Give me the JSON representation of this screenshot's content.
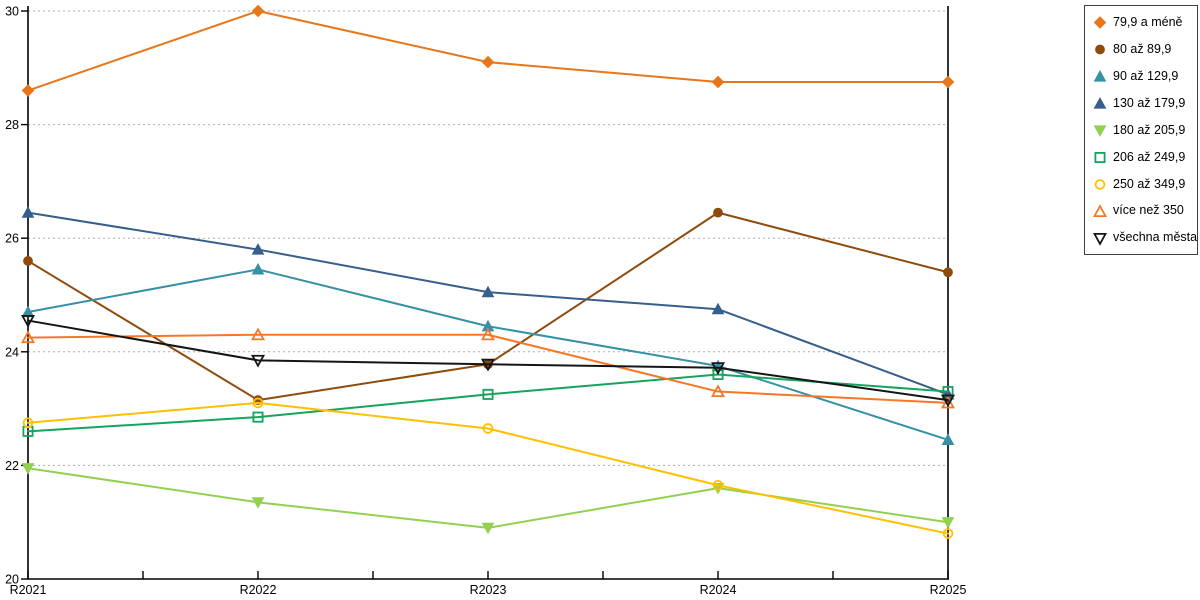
{
  "chart_data": {
    "type": "line",
    "x": [
      "R2021",
      "R2022",
      "R2023",
      "R2024",
      "R2025"
    ],
    "ylim": [
      20,
      30
    ],
    "yticks": [
      20,
      22,
      24,
      26,
      28,
      30
    ],
    "grid": "dashed-horizontal",
    "legend_position": "outside-top-right",
    "title": "",
    "xlabel": "",
    "ylabel": "",
    "series": [
      {
        "name": "79,9 a méně",
        "color": "#e8761a",
        "marker": "diamond",
        "filled": true,
        "values": [
          28.6,
          30.0,
          29.1,
          28.75,
          28.75
        ]
      },
      {
        "name": "80 až 89,9",
        "color": "#8f4b0e",
        "marker": "circle",
        "filled": true,
        "values": [
          25.6,
          23.15,
          23.78,
          26.45,
          25.4
        ]
      },
      {
        "name": "90 až 129,9",
        "color": "#3691a5",
        "marker": "triangle-up",
        "filled": true,
        "values": [
          24.7,
          25.45,
          24.45,
          23.75,
          22.45
        ]
      },
      {
        "name": "130 až 179,9",
        "color": "#375e8c",
        "marker": "triangle-up",
        "filled": true,
        "values": [
          26.45,
          25.8,
          25.05,
          24.75,
          23.25
        ]
      },
      {
        "name": "180 až 205,9",
        "color": "#92d050",
        "marker": "triangle-down",
        "filled": true,
        "values": [
          21.95,
          21.35,
          20.9,
          21.6,
          21.0
        ]
      },
      {
        "name": "206 až 249,9",
        "color": "#15a45c",
        "marker": "square",
        "filled": false,
        "values": [
          22.6,
          22.85,
          23.25,
          23.6,
          23.3
        ]
      },
      {
        "name": "250 až 349,9",
        "color": "#ffc000",
        "marker": "circle",
        "filled": false,
        "values": [
          22.75,
          23.1,
          22.65,
          21.65,
          20.8
        ]
      },
      {
        "name": "více než 350",
        "color": "#f87628",
        "marker": "triangle-up",
        "filled": false,
        "values": [
          24.25,
          24.3,
          24.3,
          23.3,
          23.1
        ]
      },
      {
        "name": "všechna města",
        "color": "#151515",
        "marker": "triangle-down",
        "filled": false,
        "values": [
          24.55,
          23.85,
          23.78,
          23.72,
          23.15
        ]
      }
    ],
    "colors": {
      "axis": "#000000",
      "gridline": "#adadad",
      "background": "#ffffff",
      "tick_label": "#000000"
    }
  }
}
